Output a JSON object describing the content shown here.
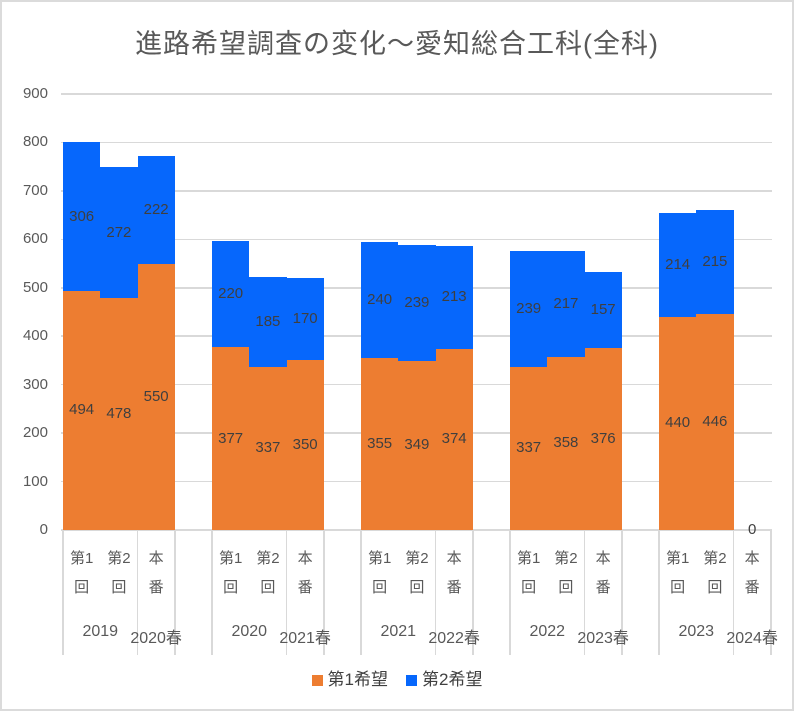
{
  "title": "進路希望調査の変化～愛知総合工科(全科)",
  "colors": {
    "series1": "#ED7D31",
    "series2": "#0667FC",
    "gridline": "#D9D9D9",
    "axis_text": "#595959",
    "data_label_text": "#3F3F3F",
    "legend_text": "#404040",
    "title_text": "#595959",
    "border": "#DBDBDB"
  },
  "chart_data": {
    "type": "bar",
    "stacked": true,
    "title": "進路希望調査の変化～愛知総合工科(全科)",
    "grid": true,
    "legend_position": "bottom",
    "series": [
      {
        "name": "第1希望",
        "color": "#ED7D31"
      },
      {
        "name": "第2希望",
        "color": "#0667FC"
      }
    ],
    "y_axis": {
      "min": 0,
      "max": 900,
      "step": 100,
      "ticks": [
        0,
        100,
        200,
        300,
        400,
        500,
        600,
        700,
        800,
        900
      ]
    },
    "groups": [
      {
        "year_label": "2019",
        "spring_label": "2020春",
        "bars": [
          {
            "category": "第1回",
            "label_lines": [
              "第1",
              "回"
            ],
            "values": [
              494,
              306
            ]
          },
          {
            "category": "第2回",
            "label_lines": [
              "第2",
              "回"
            ],
            "values": [
              478,
              272
            ]
          },
          {
            "category": "本番",
            "label_lines": [
              "本",
              "番"
            ],
            "values": [
              550,
              222
            ]
          }
        ]
      },
      {
        "year_label": "2020",
        "spring_label": "2021春",
        "bars": [
          {
            "category": "第1回",
            "label_lines": [
              "第1",
              "回"
            ],
            "values": [
              377,
              220
            ]
          },
          {
            "category": "第2回",
            "label_lines": [
              "第2",
              "回"
            ],
            "values": [
              337,
              185
            ]
          },
          {
            "category": "本番",
            "label_lines": [
              "本",
              "番"
            ],
            "values": [
              350,
              170
            ]
          }
        ]
      },
      {
        "year_label": "2021",
        "spring_label": "2022春",
        "bars": [
          {
            "category": "第1回",
            "label_lines": [
              "第1",
              "回"
            ],
            "values": [
              355,
              240
            ]
          },
          {
            "category": "第2回",
            "label_lines": [
              "第2",
              "回"
            ],
            "values": [
              349,
              239
            ]
          },
          {
            "category": "本番",
            "label_lines": [
              "本",
              "番"
            ],
            "values": [
              374,
              213
            ]
          }
        ]
      },
      {
        "year_label": "2022",
        "spring_label": "2023春",
        "bars": [
          {
            "category": "第1回",
            "label_lines": [
              "第1",
              "回"
            ],
            "values": [
              337,
              239
            ]
          },
          {
            "category": "第2回",
            "label_lines": [
              "第2",
              "回"
            ],
            "values": [
              358,
              217
            ]
          },
          {
            "category": "本番",
            "label_lines": [
              "本",
              "番"
            ],
            "values": [
              376,
              157
            ]
          }
        ]
      },
      {
        "year_label": "2023",
        "spring_label": "2024春",
        "bars": [
          {
            "category": "第1回",
            "label_lines": [
              "第1",
              "回"
            ],
            "values": [
              440,
              214
            ]
          },
          {
            "category": "第2回",
            "label_lines": [
              "第2",
              "回"
            ],
            "values": [
              446,
              215
            ]
          },
          {
            "category": "本番",
            "label_lines": [
              "本",
              "番"
            ],
            "values": [
              0,
              null
            ]
          }
        ]
      }
    ]
  }
}
